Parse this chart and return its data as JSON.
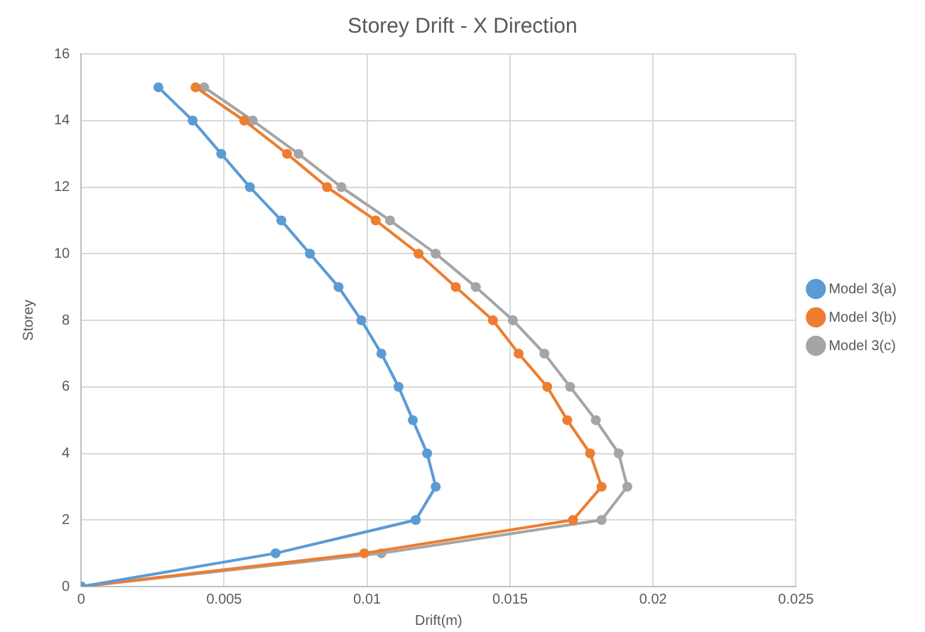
{
  "chart_data": {
    "type": "line",
    "title": "Storey Drift - X Direction",
    "xlabel": "Drift(m)",
    "ylabel": "Storey",
    "series": [
      {
        "name": "Model 3(a)",
        "color": "#5b9bd5",
        "values": [
          0,
          1,
          2,
          3,
          4,
          5,
          6,
          7,
          8,
          9,
          10,
          11,
          12,
          13,
          14,
          15
        ],
        "x": [
          0,
          0.0068,
          0.0117,
          0.0124,
          0.0121,
          0.0116,
          0.0111,
          0.0105,
          0.0098,
          0.009,
          0.008,
          0.007,
          0.0059,
          0.0049,
          0.0039,
          0.0027
        ]
      },
      {
        "name": "Model 3(b)",
        "color": "#ed7d31",
        "values": [
          0,
          1,
          2,
          3,
          4,
          5,
          6,
          7,
          8,
          9,
          10,
          11,
          12,
          13,
          14,
          15
        ],
        "x": [
          0,
          0.0099,
          0.0172,
          0.0182,
          0.0178,
          0.017,
          0.0163,
          0.0153,
          0.0144,
          0.0131,
          0.0118,
          0.0103,
          0.0086,
          0.0072,
          0.0057,
          0.004
        ]
      },
      {
        "name": "Model 3(c)",
        "color": "#a5a5a5",
        "values": [
          0,
          1,
          2,
          3,
          4,
          5,
          6,
          7,
          8,
          9,
          10,
          11,
          12,
          13,
          14,
          15
        ],
        "x": [
          0,
          0.0105,
          0.0182,
          0.0191,
          0.0188,
          0.018,
          0.0171,
          0.0162,
          0.0151,
          0.0138,
          0.0124,
          0.0108,
          0.0091,
          0.0076,
          0.006,
          0.0043
        ]
      }
    ],
    "xlim": [
      0,
      0.025
    ],
    "xticks": [
      0,
      0.005,
      0.01,
      0.015,
      0.02,
      0.025
    ],
    "ylim": [
      0,
      16
    ],
    "yticks": [
      0,
      2,
      4,
      6,
      8,
      10,
      12,
      14,
      16
    ],
    "grid": true,
    "legend": "right",
    "marker": "circle",
    "line_style": "solid"
  }
}
